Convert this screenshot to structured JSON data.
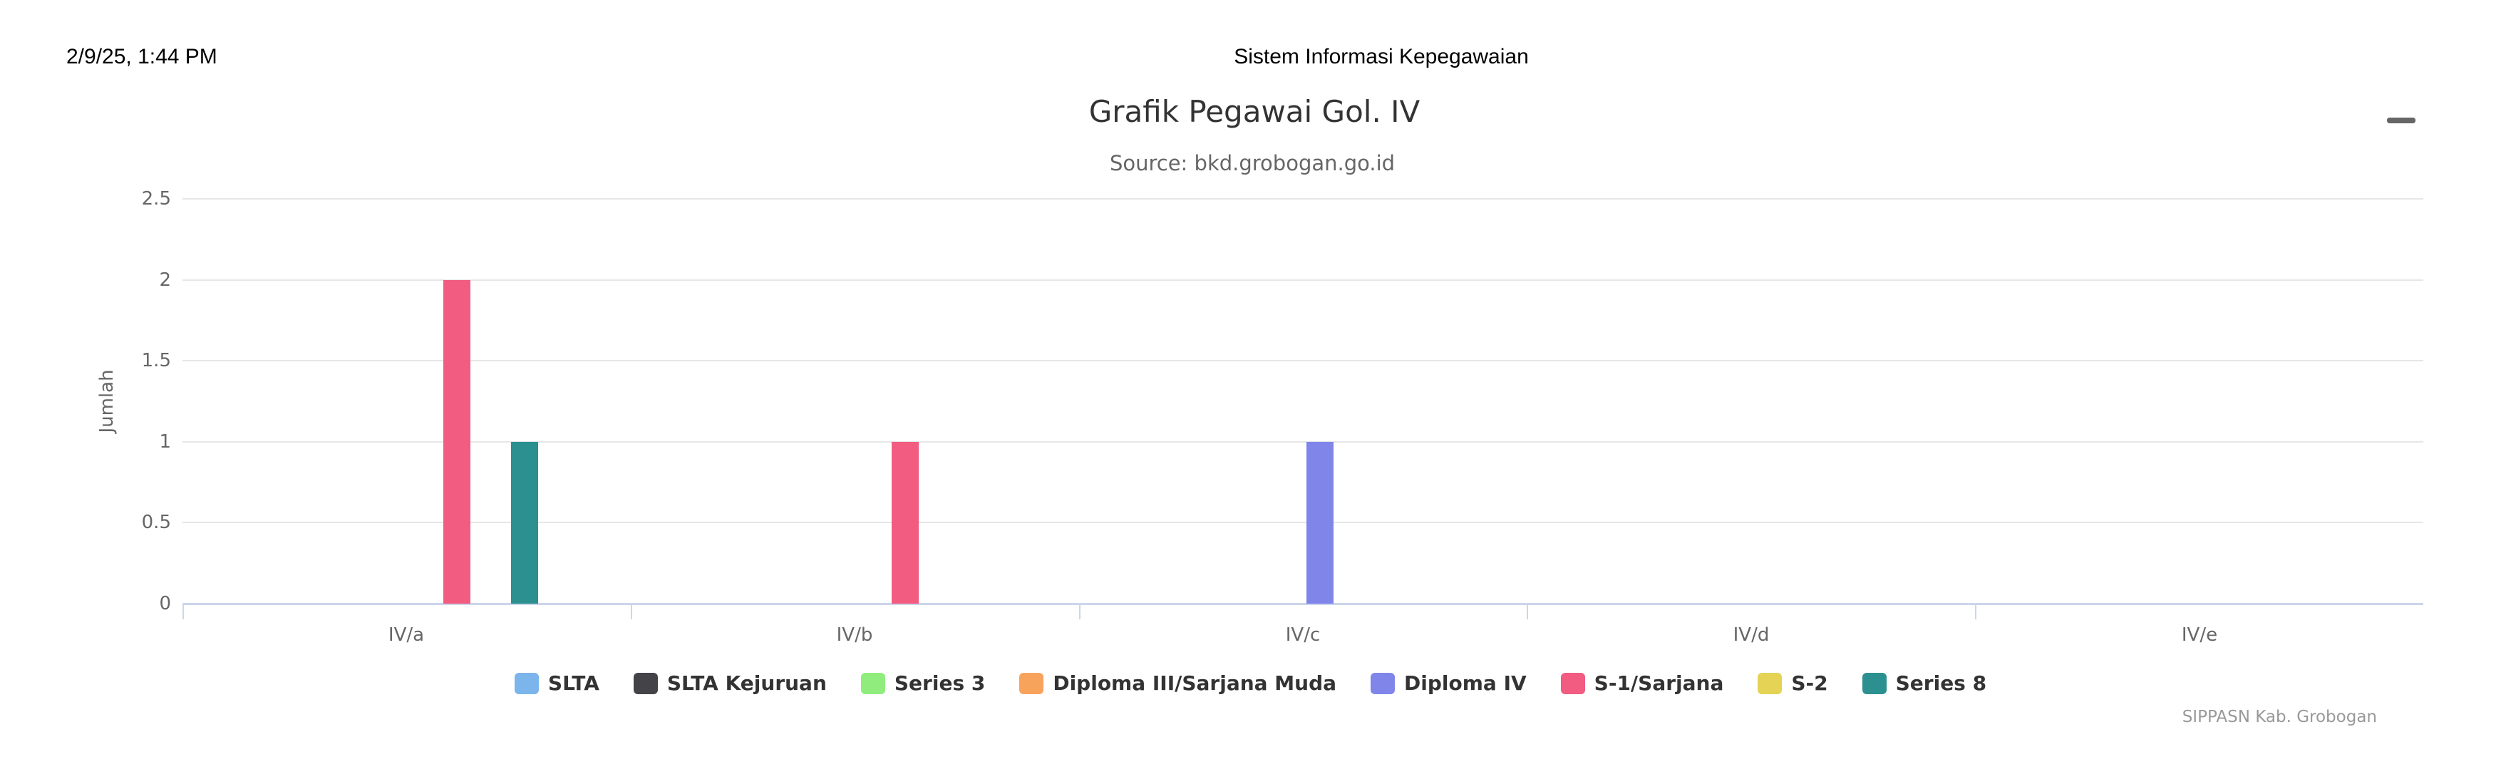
{
  "ui": {
    "print_header": {
      "datetime": "2/9/25, 1:44 PM",
      "title": "Sistem Informasi Kepegawaian"
    },
    "menu_icon": "hamburger-menu-icon",
    "credits": "SIPPASN Kab. Grobogan"
  },
  "chart_data": {
    "type": "bar",
    "title": "Grafik Pegawai Gol. IV",
    "subtitle": "Source: bkd.grobogan.go.id",
    "categories": [
      "IV/a",
      "IV/b",
      "IV/c",
      "IV/d",
      "IV/e"
    ],
    "series": [
      {
        "name": "SLTA",
        "color": "#7cb5ec",
        "values": [
          0,
          0,
          0,
          0,
          0
        ]
      },
      {
        "name": "SLTA Kejuruan",
        "color": "#434348",
        "values": [
          0,
          0,
          0,
          0,
          0
        ]
      },
      {
        "name": "Series 3",
        "color": "#90ed7d",
        "values": [
          0,
          0,
          0,
          0,
          0
        ]
      },
      {
        "name": "Diploma III/Sarjana Muda",
        "color": "#f7a35c",
        "values": [
          0,
          0,
          0,
          0,
          0
        ]
      },
      {
        "name": "Diploma IV",
        "color": "#8085e9",
        "values": [
          0,
          0,
          1,
          0,
          0
        ]
      },
      {
        "name": "S-1/Sarjana",
        "color": "#f15c80",
        "values": [
          2,
          1,
          0,
          0,
          0
        ]
      },
      {
        "name": "S-2",
        "color": "#e4d354",
        "values": [
          0,
          0,
          0,
          0,
          0
        ]
      },
      {
        "name": "Series 8",
        "color": "#2b908f",
        "values": [
          1,
          0,
          0,
          0,
          0
        ]
      }
    ],
    "xlabel": "",
    "ylabel": "Jumlah",
    "ylim": [
      0,
      2.5
    ],
    "yticks": [
      0,
      0.5,
      1,
      1.5,
      2,
      2.5
    ],
    "grid": true,
    "legend_position": "bottom",
    "style": {
      "grid_color": "#e6e6e6",
      "axis_line_color": "#ccd6eb",
      "axis_label_color": "#666666",
      "title_color": "#333333",
      "subtitle_color": "#666666",
      "legend_text_color": "#333333",
      "credits_color": "#999999",
      "menu_icon_color": "#666666"
    }
  }
}
